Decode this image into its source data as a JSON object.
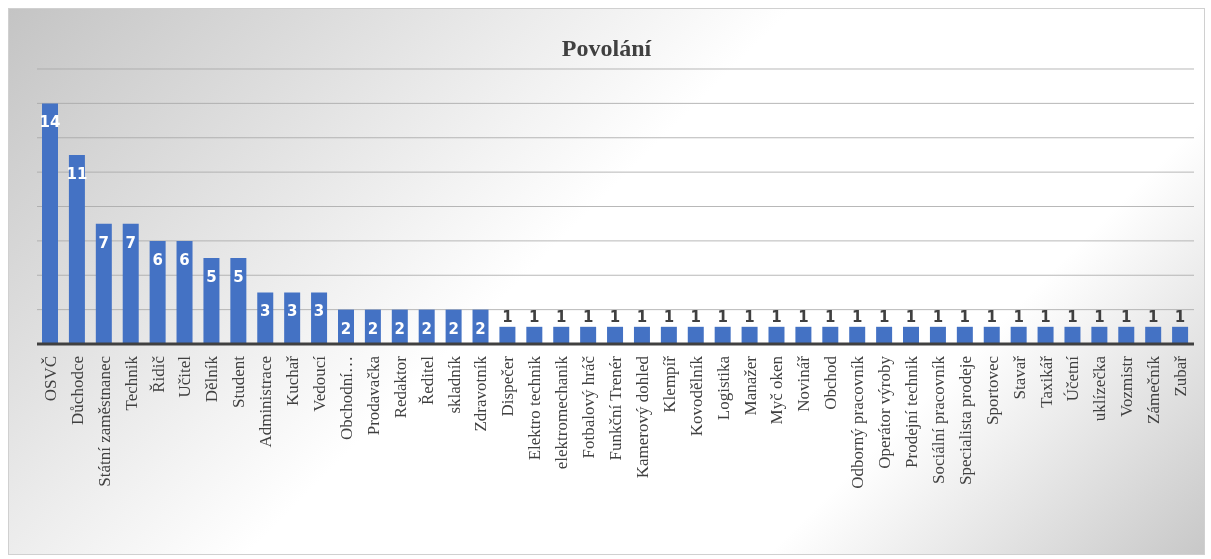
{
  "chart_data": {
    "type": "bar",
    "title": "Povolání",
    "categories": [
      "OSVČ",
      "Důchodce",
      "Státní zaměstnanec",
      "Technik",
      "Řidič",
      "Učitel",
      "Dělník",
      "Student",
      "Administrace",
      "Kuchař",
      "Vedoucí",
      "Obchodní…",
      "Prodavačka",
      "Redaktor",
      "Ředitel",
      "skladník",
      "Zdravotník",
      "Dispečer",
      "Elektro technik",
      "elektromechanik",
      "Fotbalový hráč",
      "Funkční Trenér",
      "Kamerový dohled",
      "Klempíř",
      "Kovodělník",
      "Logistika",
      "Manažer",
      "Myč oken",
      "Novinář",
      "Obchod",
      "Odborný pracovník",
      "Operátor výroby",
      "Prodejní technik",
      "Sociální pracovník",
      "Specialista prodeje",
      "Sportovec",
      "Stavař",
      "Taxikář",
      "Účetní",
      "uklízečka",
      "Vozmistr",
      "Zámečník",
      "Zubař"
    ],
    "values": [
      14,
      11,
      7,
      7,
      6,
      6,
      5,
      5,
      3,
      3,
      3,
      2,
      2,
      2,
      2,
      2,
      2,
      1,
      1,
      1,
      1,
      1,
      1,
      1,
      1,
      1,
      1,
      1,
      1,
      1,
      1,
      1,
      1,
      1,
      1,
      1,
      1,
      1,
      1,
      1,
      1,
      1,
      1
    ],
    "color": "#4472c4",
    "ylim": [
      0,
      16
    ],
    "yticks": [
      {
        "value": 0,
        "label": null
      },
      {
        "value": 2,
        "label": null
      },
      {
        "value": 4,
        "label": null
      },
      {
        "value": 6,
        "label": null
      },
      {
        "value": 8,
        "label": null
      },
      {
        "value": 10,
        "label": null
      },
      {
        "value": 12,
        "label": null
      },
      {
        "value": 14,
        "label": null
      },
      {
        "value": 16,
        "label": null
      }
    ],
    "grid": "y",
    "data_labels": true,
    "tick_labels": "x"
  }
}
